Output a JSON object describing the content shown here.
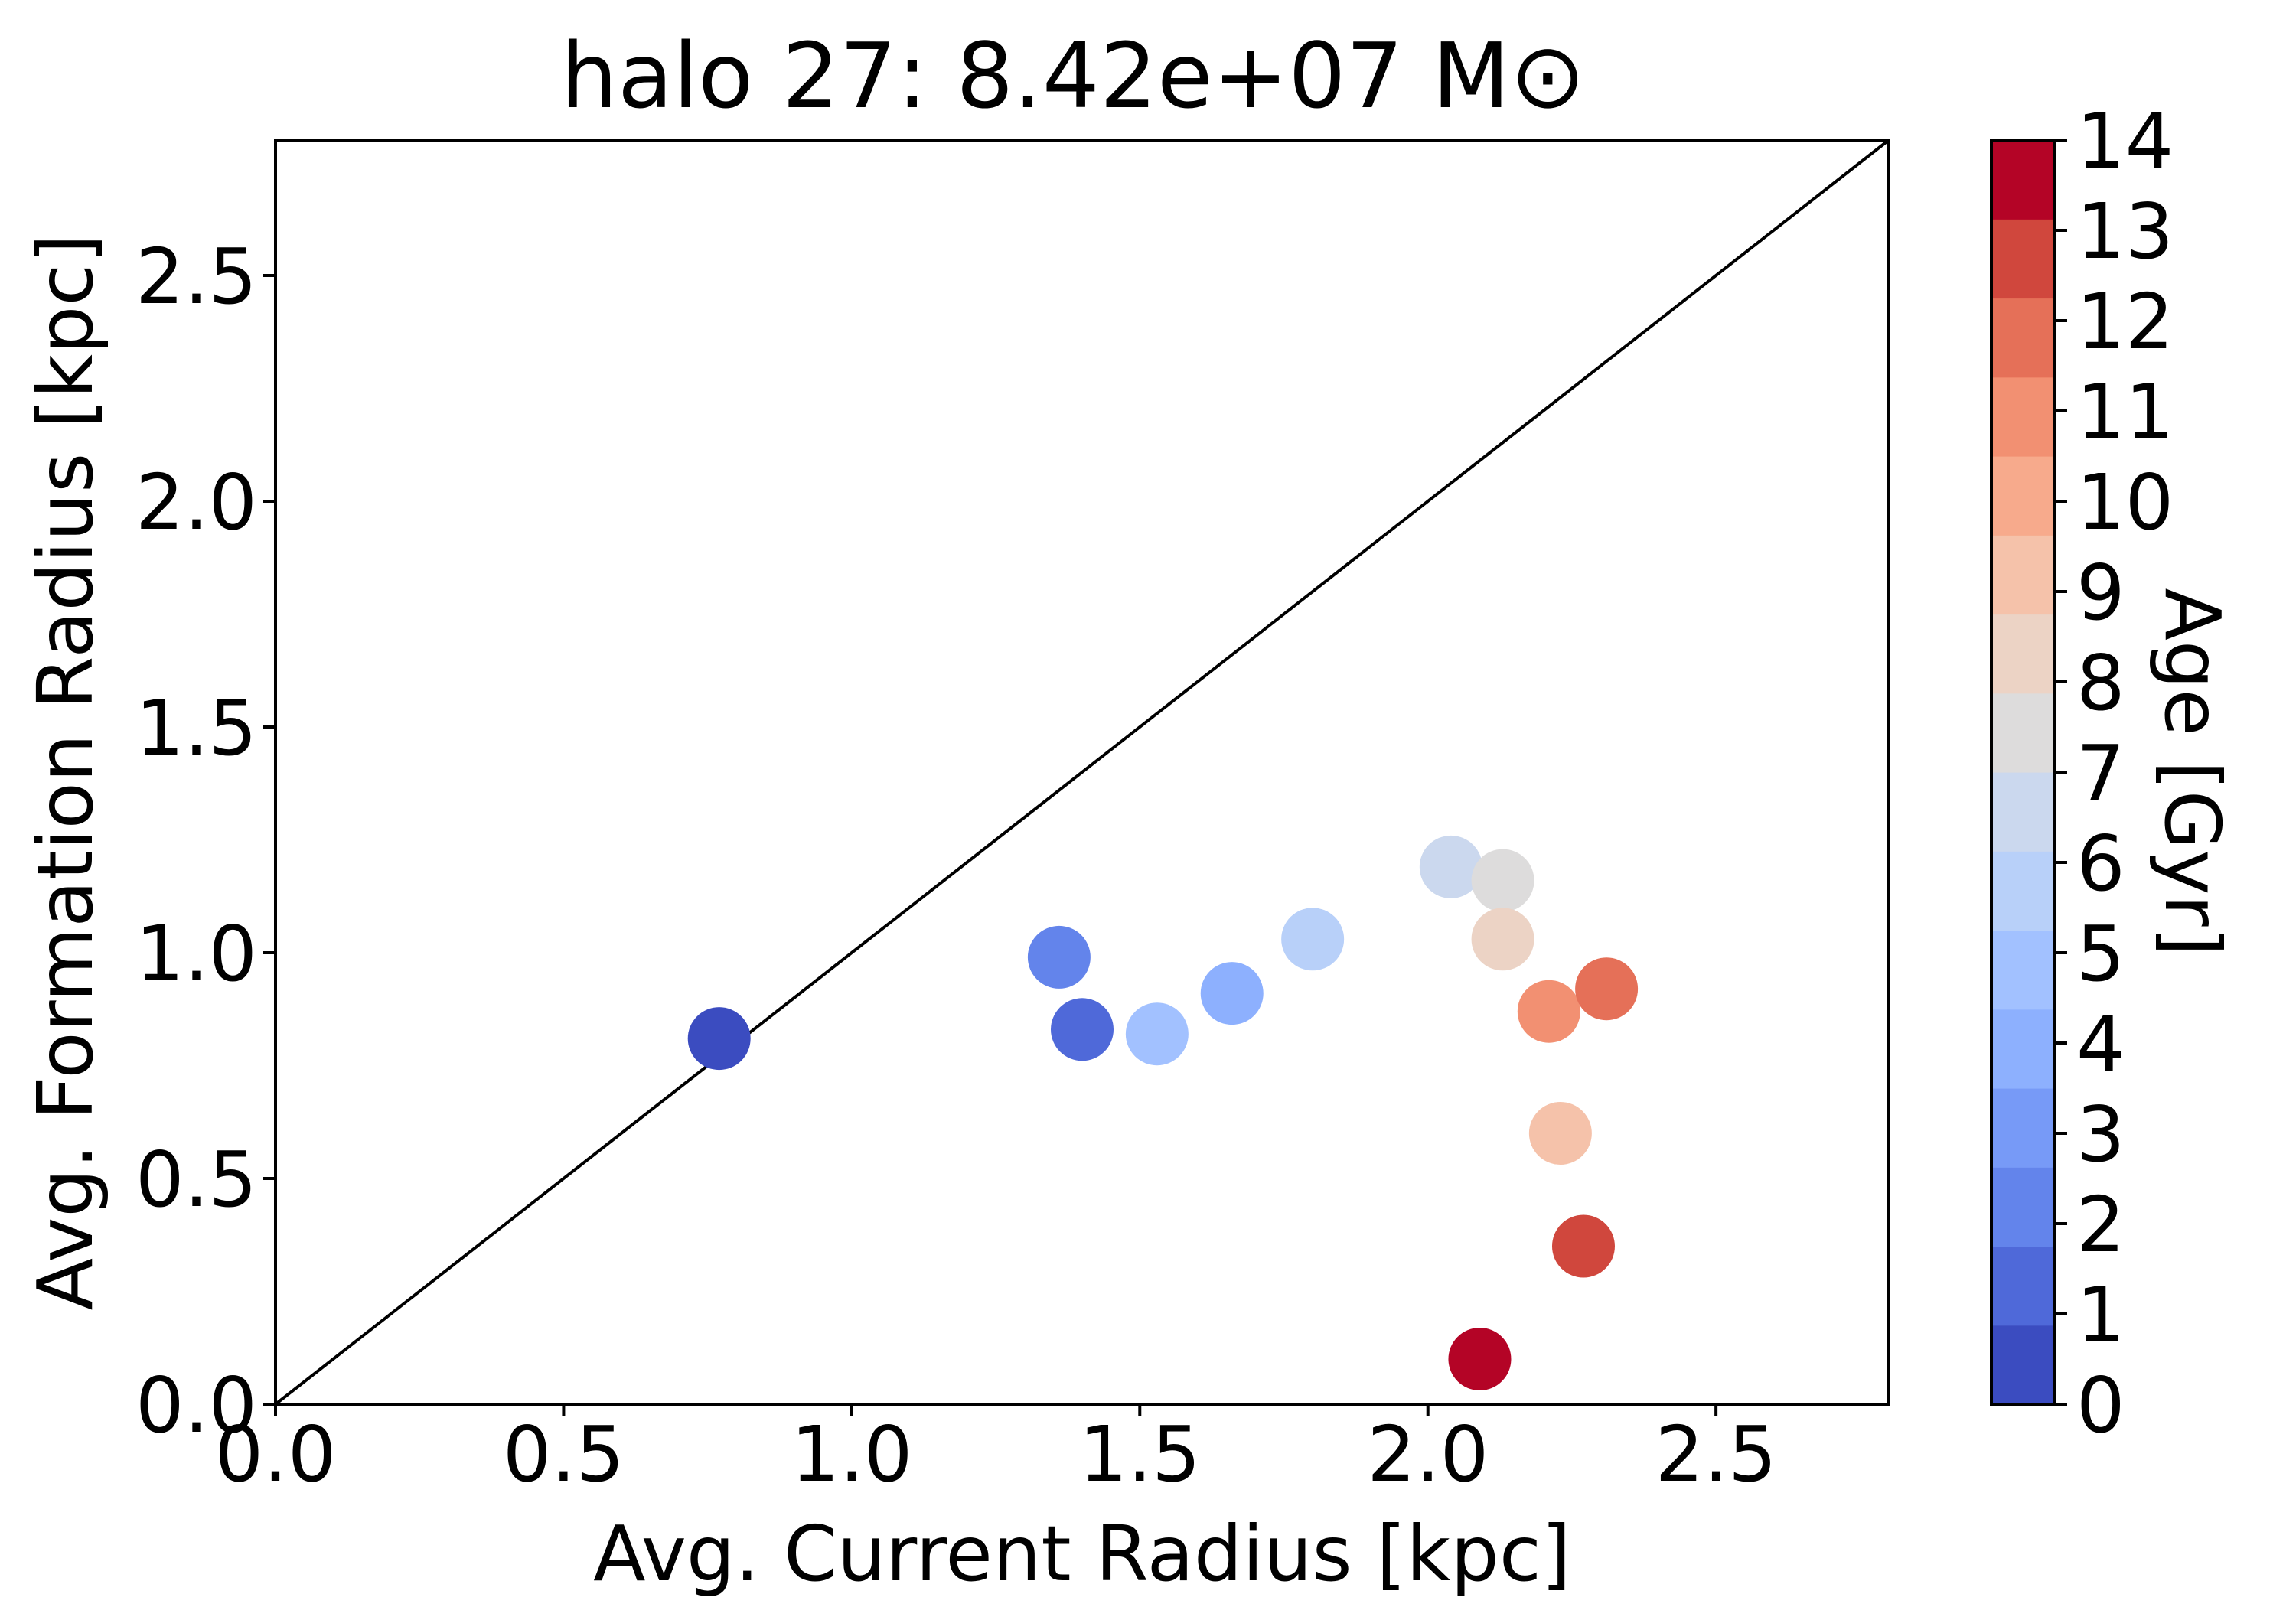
{
  "chart_data": {
    "type": "scatter",
    "title": "halo 27: 8.42e+07 M⊙",
    "xlabel": "Avg. Current Radius [kpc]",
    "ylabel": "Avg. Formation Radius [kpc]",
    "xlim": [
      0,
      2.8
    ],
    "ylim": [
      0,
      2.8
    ],
    "xticks": [
      0.0,
      0.5,
      1.0,
      1.5,
      2.0,
      2.5
    ],
    "yticks": [
      0.0,
      0.5,
      1.0,
      1.5,
      2.0,
      2.5
    ],
    "xtick_labels": [
      "0.0",
      "0.5",
      "1.0",
      "1.5",
      "2.0",
      "2.5"
    ],
    "ytick_labels": [
      "0.0",
      "0.5",
      "1.0",
      "1.5",
      "2.0",
      "2.5"
    ],
    "reference_line": "y = x",
    "grid": false,
    "colorbar": {
      "label": "Age [Gyr]",
      "min": 0,
      "max": 14,
      "ticks": [
        0,
        1,
        2,
        3,
        4,
        5,
        6,
        7,
        8,
        9,
        10,
        11,
        12,
        13,
        14
      ],
      "tick_labels": [
        "0",
        "1",
        "2",
        "3",
        "4",
        "5",
        "6",
        "7",
        "8",
        "9",
        "10",
        "11",
        "12",
        "13",
        "14"
      ],
      "colors": [
        "#3b4cc0",
        "#4f69d9",
        "#6384eb",
        "#779af7",
        "#8db0fe",
        "#a2c1ff",
        "#b8d0f9",
        "#cbd8ee",
        "#dddcdc",
        "#ecd3c5",
        "#f5c2aa",
        "#f7aa8c",
        "#f29072",
        "#e57058",
        "#d0473d",
        "#b40426"
      ]
    },
    "points": [
      {
        "x": 0.77,
        "y": 0.81,
        "age": 0.5
      },
      {
        "x": 1.4,
        "y": 0.83,
        "age": 1.5
      },
      {
        "x": 1.36,
        "y": 0.99,
        "age": 2.5
      },
      {
        "x": 1.66,
        "y": 0.91,
        "age": 3.5
      },
      {
        "x": 1.53,
        "y": 0.82,
        "age": 4.5
      },
      {
        "x": 1.8,
        "y": 1.03,
        "age": 5.5
      },
      {
        "x": 2.04,
        "y": 1.19,
        "age": 6.5
      },
      {
        "x": 2.13,
        "y": 1.16,
        "age": 7.5
      },
      {
        "x": 2.13,
        "y": 1.03,
        "age": 8.5
      },
      {
        "x": 2.23,
        "y": 0.6,
        "age": 9.5
      },
      {
        "x": 2.21,
        "y": 0.87,
        "age": 10.5
      },
      {
        "x": 2.31,
        "y": 0.92,
        "age": 11.5
      },
      {
        "x": 2.27,
        "y": 0.35,
        "age": 12.5
      },
      {
        "x": 2.09,
        "y": 0.1,
        "age": 13.5
      }
    ]
  }
}
